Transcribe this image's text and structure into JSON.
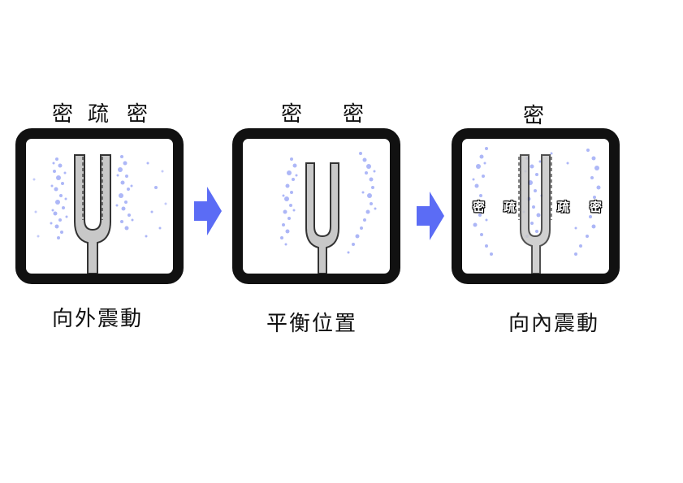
{
  "panels": [
    {
      "top_labels": [
        "密",
        "疏",
        "密"
      ],
      "caption": "向外震動"
    },
    {
      "top_labels": [
        "密",
        "密"
      ],
      "caption": "平衡位置"
    },
    {
      "top_labels": [
        "密"
      ],
      "inner_labels": [
        "密",
        "疏",
        "疏",
        "密"
      ],
      "caption": "向內震動"
    }
  ],
  "colors": {
    "frame": "#111111",
    "arrow": "#5b6cf5",
    "dots": "#6a7cf0",
    "fork_fill": "#c8c8c8",
    "fork_stroke": "#333333"
  }
}
